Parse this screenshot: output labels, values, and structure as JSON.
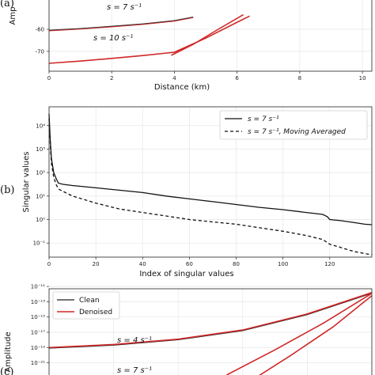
{
  "chart_data": [
    {
      "panel_label": "(a)",
      "type": "line",
      "ylabel_fragment": "Amp",
      "xlabel": "Distance (km)",
      "xlim": [
        0,
        10.3
      ],
      "ylim": [
        -79,
        -46
      ],
      "x_ticks": [
        "0",
        "2",
        "4",
        "6",
        "8",
        "10"
      ],
      "x_tick_values": [
        0,
        2,
        4,
        6,
        8,
        10
      ],
      "y_ticks": [
        "-60",
        "-70"
      ],
      "y_tick_values": [
        -60,
        -70
      ],
      "grid": true,
      "annotations": [
        "s = 7 s⁻¹",
        "s = 10 s⁻¹"
      ],
      "series": [
        {
          "color": "#d02828",
          "x": [
            0,
            1,
            2,
            3,
            4,
            4.6
          ],
          "y": [
            -60.6,
            -59.8,
            -58.8,
            -57.7,
            -56.2,
            -54.6
          ]
        },
        {
          "color": "#333333",
          "x": [
            0,
            1,
            2,
            3,
            4,
            4.6
          ],
          "y": [
            -60.4,
            -59.6,
            -58.6,
            -57.5,
            -56.0,
            -54.4
          ]
        },
        {
          "color": "#d02828",
          "x": [
            0,
            1,
            2,
            3,
            4,
            5,
            6,
            6.4
          ],
          "y": [
            -75.4,
            -74.4,
            -73.2,
            -71.9,
            -70.4,
            -64.0,
            -56.8,
            -54.0
          ]
        },
        {
          "color": "#d02828",
          "x": [
            3.9,
            4.6,
            5.4,
            6.2
          ],
          "y": [
            -71.8,
            -66.8,
            -60.0,
            -53.4
          ]
        }
      ]
    },
    {
      "panel_label": "(b)",
      "type": "line",
      "xlabel": "Index of singular values",
      "ylabel": "Singular values",
      "yscale": "log",
      "xlim": [
        0,
        138
      ],
      "ylim_exponent": [
        -1.6,
        4.8
      ],
      "x_ticks": [
        "0",
        "20",
        "40",
        "60",
        "80",
        "100",
        "120"
      ],
      "x_tick_values": [
        0,
        20,
        40,
        60,
        80,
        100,
        120
      ],
      "y_ticks": [
        "10⁴",
        "10³",
        "10²",
        "10¹",
        "10⁰",
        "10⁻¹"
      ],
      "y_tick_exponents": [
        4,
        3,
        2,
        1,
        0,
        -1
      ],
      "grid": true,
      "legend_position": "top-right",
      "series": [
        {
          "name": "s = 7 s⁻¹",
          "style": "solid",
          "x": [
            0,
            0.5,
            1,
            2,
            3,
            4,
            6,
            10,
            20,
            30,
            40,
            50,
            60,
            70,
            80,
            90,
            100,
            110,
            117,
            119,
            120,
            125,
            130,
            135,
            138
          ],
          "log10": [
            4.5,
            3.4,
            2.6,
            2.0,
            1.75,
            1.55,
            1.5,
            1.45,
            1.35,
            1.25,
            1.15,
            1.0,
            0.88,
            0.76,
            0.64,
            0.52,
            0.42,
            0.3,
            0.22,
            0.12,
            0.0,
            -0.05,
            -0.12,
            -0.2,
            -0.22
          ]
        },
        {
          "name": "s = 7 s⁻¹, Moving Averaged",
          "style": "dashed",
          "x": [
            0,
            0.5,
            1,
            2,
            3,
            4,
            6,
            10,
            20,
            30,
            40,
            50,
            60,
            70,
            80,
            90,
            100,
            110,
            117,
            120,
            125,
            130,
            135,
            138
          ],
          "log10": [
            4.3,
            3.2,
            2.4,
            1.8,
            1.5,
            1.3,
            1.2,
            1.0,
            0.7,
            0.45,
            0.3,
            0.15,
            0.0,
            -0.1,
            -0.2,
            -0.35,
            -0.5,
            -0.68,
            -0.85,
            -1.05,
            -1.2,
            -1.35,
            -1.45,
            -1.5
          ]
        }
      ]
    },
    {
      "panel_label": "(c)",
      "type": "line",
      "ylabel_fragment": "Amplitude",
      "yscale": "log",
      "y_ticks": [
        "10⁻¹¹",
        "10⁻¹³",
        "10⁻¹⁵",
        "10⁻¹⁷",
        "10⁻¹⁹",
        "10⁻²¹"
      ],
      "y_tick_exponents": [
        -11,
        -13,
        -15,
        -17,
        -19,
        -21
      ],
      "grid": true,
      "legend_position": "top-left",
      "annotations": [
        "s = 4 s⁻¹",
        "s = 7 s⁻¹"
      ],
      "series": [
        {
          "name": "Clean",
          "color": "#222222",
          "x": [
            0,
            0.2,
            0.4,
            0.6,
            0.8,
            1.0
          ],
          "log10": [
            -19.1,
            -18.7,
            -18.0,
            -16.8,
            -14.7,
            -11.9
          ]
        },
        {
          "name": "Denoised",
          "color": "#d02828",
          "x": [
            0,
            0.2,
            0.4,
            0.6,
            0.8,
            1.0
          ],
          "log10": [
            -19.0,
            -18.6,
            -17.9,
            -16.7,
            -14.6,
            -11.8
          ]
        },
        {
          "color": "#d02828",
          "x": [
            0.55,
            0.7,
            0.85,
            1.0
          ],
          "log10": [
            -22.6,
            -19.3,
            -15.8,
            -11.9
          ]
        },
        {
          "color": "#d02828",
          "x": [
            0.62,
            0.75,
            0.88,
            1.0
          ],
          "log10": [
            -23.5,
            -20.0,
            -16.3,
            -12.2
          ]
        }
      ]
    }
  ]
}
